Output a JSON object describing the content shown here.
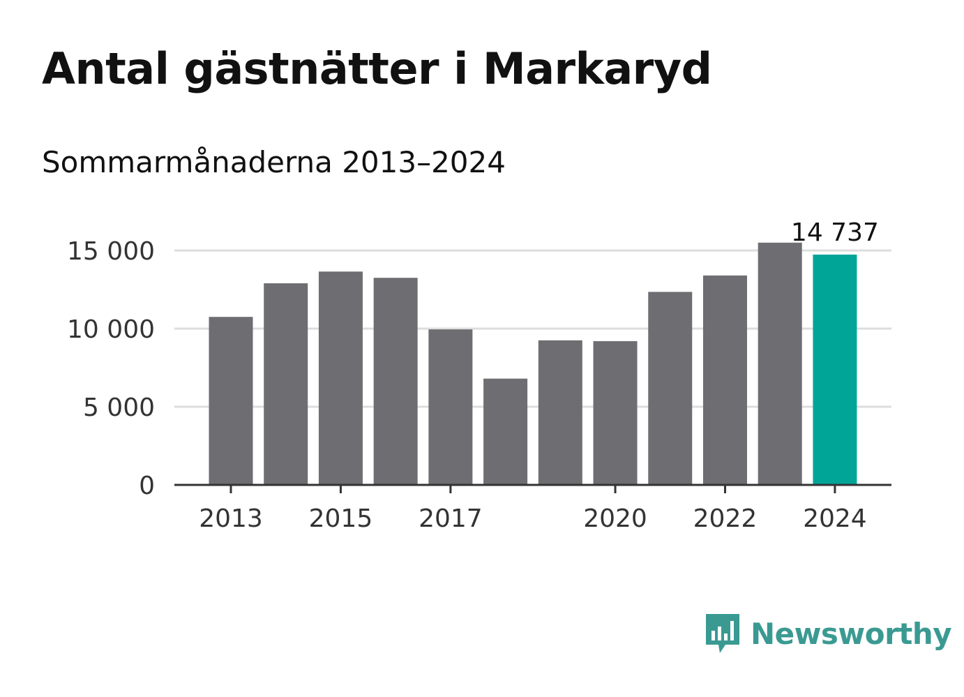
{
  "header": {
    "title": "Antal gästnätter i Markaryd",
    "subtitle": "Sommarmånaderna 2013–2024"
  },
  "chart_data": {
    "type": "bar",
    "categories": [
      "2013",
      "2014",
      "2015",
      "2016",
      "2017",
      "2018",
      "2019",
      "2020",
      "2021",
      "2022",
      "2023",
      "2024"
    ],
    "values": [
      10750,
      12900,
      13650,
      13250,
      9950,
      6800,
      9250,
      9200,
      12350,
      13400,
      15500,
      14737
    ],
    "x_tick_labels": [
      "2013",
      "2015",
      "2017",
      "2020",
      "2022",
      "2024"
    ],
    "y_ticks": [
      0,
      5000,
      10000,
      15000
    ],
    "y_tick_labels": [
      "0",
      "5 000",
      "10 000",
      "15 000"
    ],
    "ylim": [
      0,
      15000
    ],
    "highlight_index": 11,
    "highlight_label": "14 737",
    "grid": true,
    "colors": {
      "bar": "#6e6d72",
      "highlight": "#00a598",
      "grid": "#dddddd",
      "axis": "#333333",
      "text": "#333333"
    }
  },
  "branding": {
    "name": "Newsworthy",
    "color": "#3a9a92"
  }
}
